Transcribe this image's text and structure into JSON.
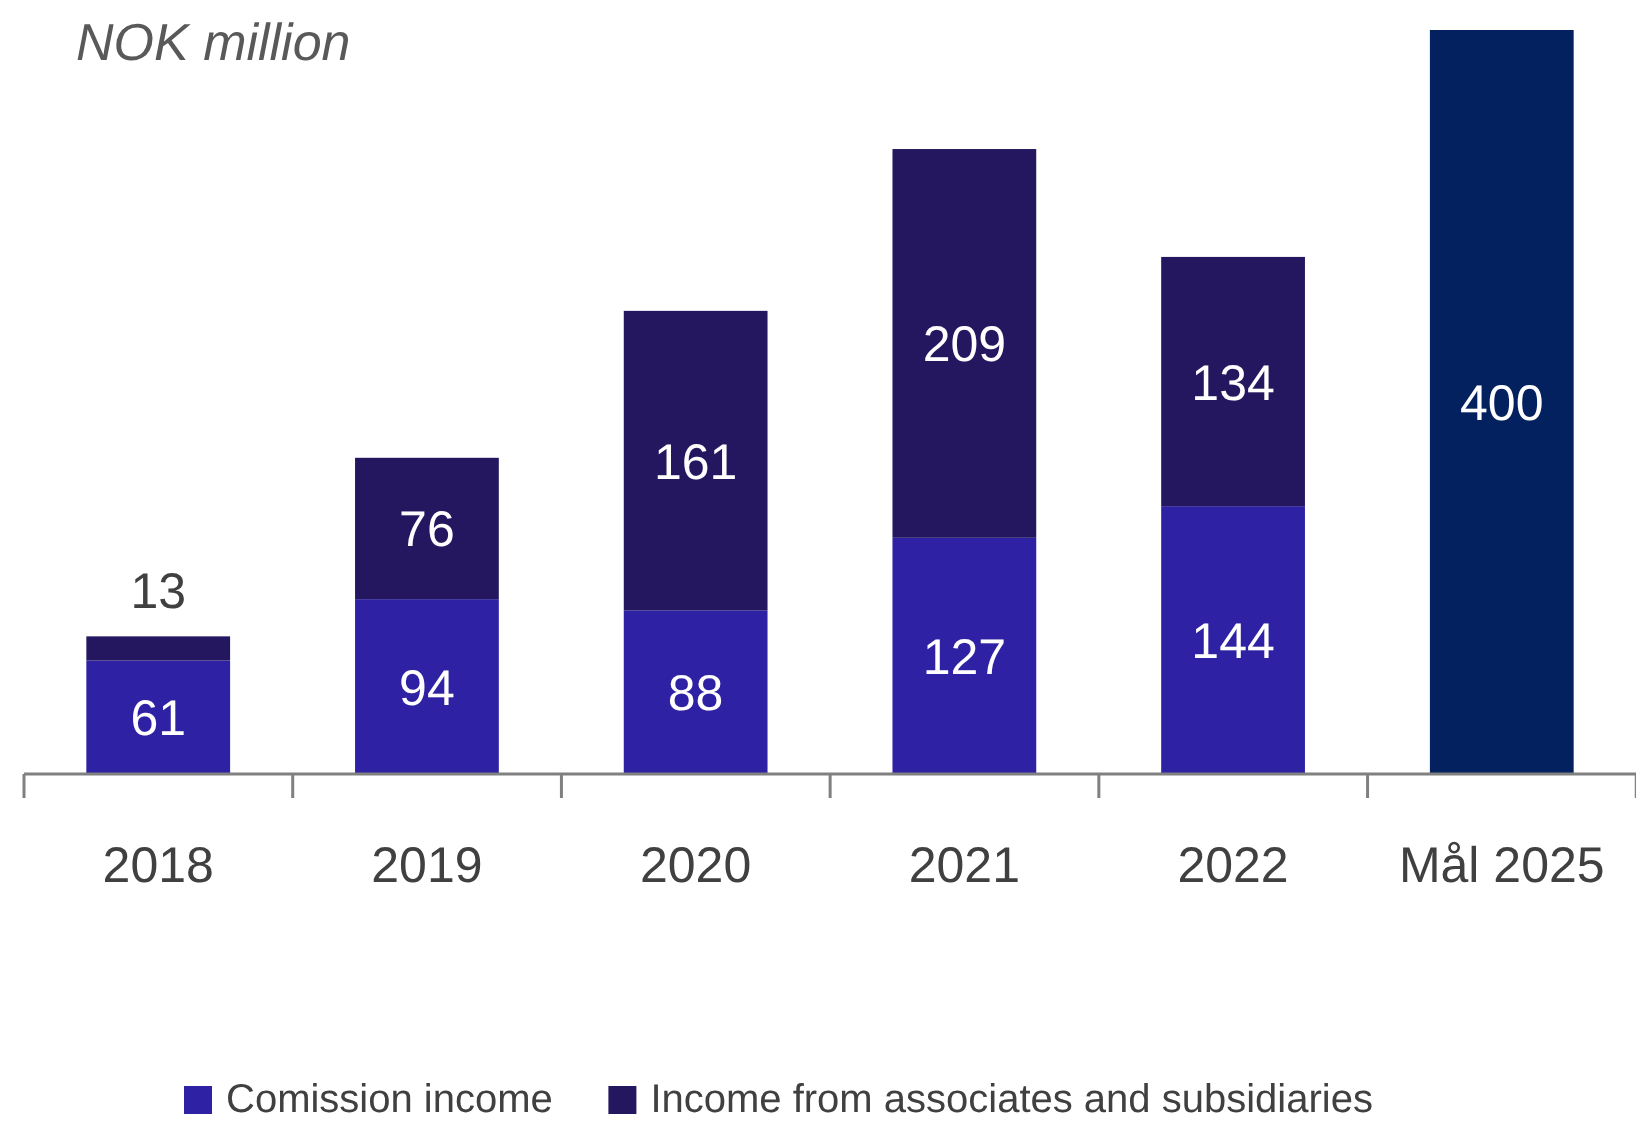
{
  "chart_data": {
    "type": "bar",
    "ylabel": "NOK million",
    "categories": [
      "2018",
      "2019",
      "2020",
      "2021",
      "2022",
      "Mål 2025"
    ],
    "series": [
      {
        "name": "Comission income",
        "color": "#2e21a3",
        "values": [
          61,
          94,
          88,
          127,
          144,
          null
        ]
      },
      {
        "name": "Income from associates and subsidiaries",
        "color": "#24175f",
        "values": [
          13,
          76,
          161,
          209,
          134,
          null
        ]
      },
      {
        "color": "#03215e",
        "values": [
          null,
          null,
          null,
          null,
          null,
          400
        ]
      }
    ],
    "stacked": true,
    "data_labels": true,
    "legend": "bottom"
  }
}
